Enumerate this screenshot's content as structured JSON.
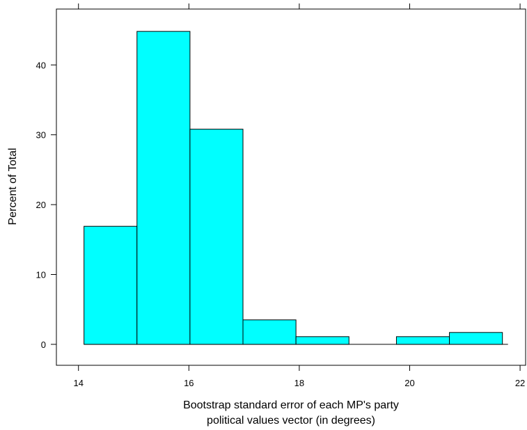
{
  "chart_data": {
    "type": "bar",
    "title": "",
    "xlabel_lines": [
      "Bootstrap standard error of each MP's party",
      "political values vector (in degrees)"
    ],
    "ylabel": "Percent of Total",
    "xlim": [
      13.6,
      22.1
    ],
    "ylim": [
      -3,
      48
    ],
    "x_ticks": [
      14,
      16,
      18,
      20,
      22
    ],
    "y_ticks": [
      0,
      10,
      20,
      30,
      40
    ],
    "bin_edges": [
      14.1,
      15.06,
      16.02,
      16.98,
      17.94,
      18.9,
      19.76,
      20.72,
      21.68
    ],
    "values": [
      16.9,
      44.8,
      30.8,
      3.5,
      1.1,
      0.0,
      1.1,
      1.7
    ],
    "colors": {
      "bar_fill": "#00ffff",
      "bar_stroke": "#000000"
    },
    "grid": false
  }
}
